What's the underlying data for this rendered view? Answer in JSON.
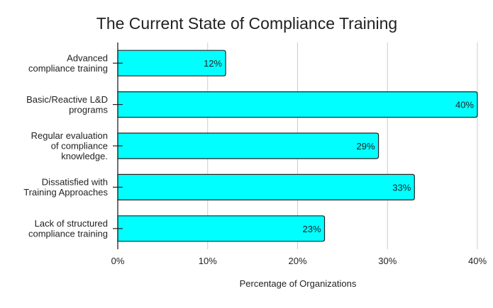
{
  "chart_data": {
    "type": "bar",
    "orientation": "horizontal",
    "title": "The Current State of Compliance Training",
    "xlabel": "Percentage of Organizations",
    "ylabel": "",
    "categories": [
      [
        "Advanced",
        "compliance training"
      ],
      [
        "Basic/Reactive L&D",
        "programs"
      ],
      [
        "Regular evaluation",
        "of compliance",
        "knowledge."
      ],
      [
        "Dissatisfied with",
        "Training Approaches"
      ],
      [
        "Lack of structured",
        "compliance training"
      ]
    ],
    "values": [
      12,
      40,
      29,
      33,
      23
    ],
    "data_labels": [
      "12%",
      "40%",
      "29%",
      "33%",
      "23%"
    ],
    "xlim": [
      0,
      40
    ],
    "xticks": [
      0,
      10,
      20,
      30,
      40
    ],
    "xtick_labels": [
      "0%",
      "10%",
      "20%",
      "30%",
      "40%"
    ],
    "grid": "vertical",
    "legend": "none",
    "colors": {
      "bar": "#00FFFF",
      "bar_stroke": "#222222",
      "grid": "#cccccc"
    }
  }
}
